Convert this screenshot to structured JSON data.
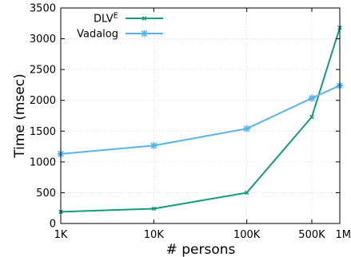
{
  "chart_data": {
    "type": "line",
    "title": "",
    "xlabel": "# persons",
    "ylabel": "Time (msec)",
    "x_scale": "log",
    "x": [
      1000,
      10000,
      100000,
      500000,
      1000000
    ],
    "x_tick_labels": [
      "1K",
      "10K",
      "100K",
      "500K",
      "1M"
    ],
    "ylim": [
      0,
      3500
    ],
    "y_ticks": [
      0,
      500,
      1000,
      1500,
      2000,
      2500,
      3000,
      3500
    ],
    "grid": true,
    "legend_position": "top-left",
    "series": [
      {
        "name": "DLV",
        "name_superscript": "E",
        "color": "#129c77",
        "marker": "x",
        "values": [
          190,
          240,
          500,
          1730,
          3180
        ]
      },
      {
        "name": "Vadalog",
        "color": "#56b4e9",
        "marker": "star",
        "values": [
          1130,
          1265,
          1540,
          2035,
          2240
        ]
      }
    ]
  }
}
